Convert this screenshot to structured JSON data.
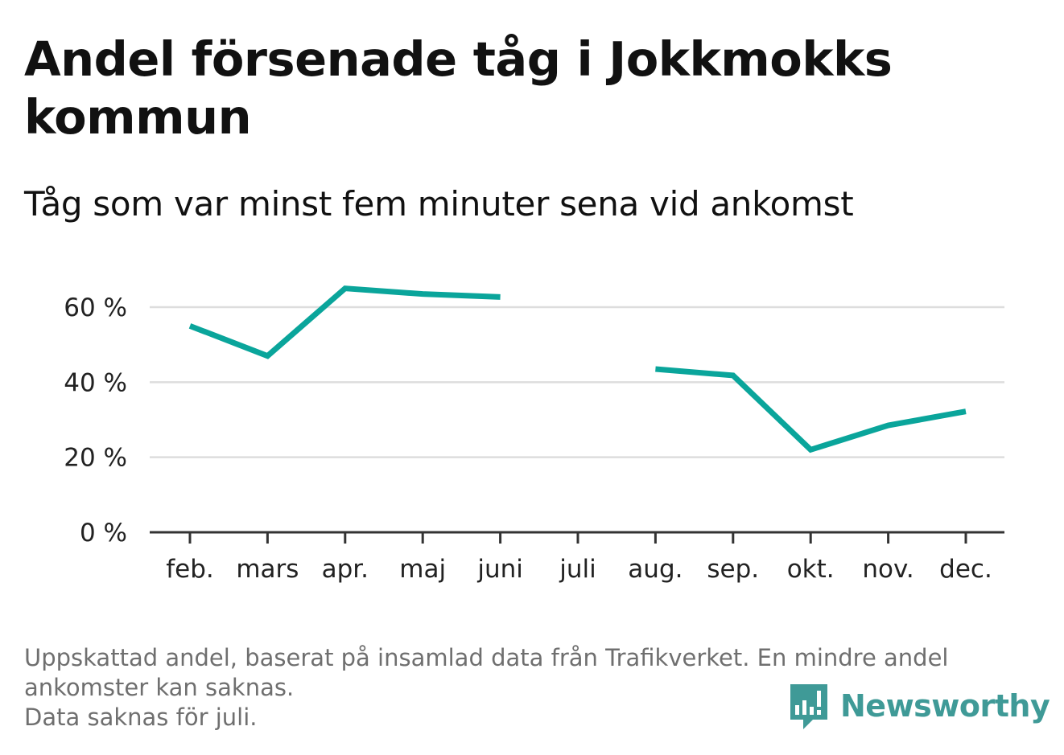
{
  "title": "Andel försenade tåg i Jokkmokks kommun",
  "subtitle": "Tåg som var minst fem minuter sena vid ankomst",
  "footnote": {
    "line1": "Uppskattad andel, baserat på insamlad data från Trafikverket. En mindre andel",
    "line2": "ankomster kan saknas.",
    "line3": "Data saknas för juli."
  },
  "brand": {
    "name": "Newsworthy",
    "icon": "newsworthy-logo-icon",
    "color": "#3f9a97"
  },
  "chart_data": {
    "type": "line",
    "title": "Andel försenade tåg i Jokkmokks kommun",
    "subtitle": "Tåg som var minst fem minuter sena vid ankomst",
    "categories": [
      "feb.",
      "mars",
      "apr.",
      "maj",
      "juni",
      "juli",
      "aug.",
      "sep.",
      "okt.",
      "nov.",
      "dec."
    ],
    "series": [
      {
        "values": [
          55,
          47,
          65,
          63.5,
          62.7,
          null,
          43.5,
          41.8,
          22,
          28.5,
          32.2
        ],
        "color": "#0aa59b"
      }
    ],
    "ylim": [
      0,
      70
    ],
    "yticks": [
      0,
      20,
      40,
      60
    ],
    "ytick_labels": [
      "0 %",
      "20 %",
      "40 %",
      "60 %"
    ],
    "grid": true,
    "grid_color": "#dddddd",
    "axis_color": "#333333",
    "missing": [
      "juli"
    ]
  }
}
